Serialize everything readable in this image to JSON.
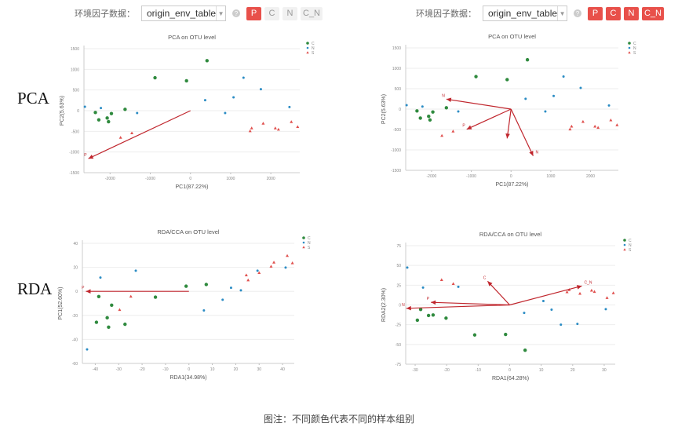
{
  "toolbars": [
    {
      "label": "环境因子数据：",
      "select_value": "origin_env_table",
      "help": "?",
      "buttons": [
        {
          "label": "P",
          "active": true
        },
        {
          "label": "C",
          "active": false
        },
        {
          "label": "N",
          "active": false
        },
        {
          "label": "C_N",
          "active": false
        }
      ]
    },
    {
      "label": "环境因子数据：",
      "select_value": "origin_env_table",
      "help": "?",
      "buttons": [
        {
          "label": "P",
          "active": true
        },
        {
          "label": "C",
          "active": true
        },
        {
          "label": "N",
          "active": true
        },
        {
          "label": "C_N",
          "active": true
        }
      ]
    }
  ],
  "row_labels": [
    "PCA",
    "RDA"
  ],
  "caption": "图注：不同颜色代表不同的样本组别",
  "colors": {
    "C": "#2f8a3e",
    "N": "#2b8cc4",
    "S": "#e0504e",
    "arrow": "#c0262d",
    "active_button": "#e8504a"
  },
  "chart_data": [
    {
      "type": "scatter",
      "title": "PCA on OTU level",
      "xlabel": "PC1(87.22%)",
      "ylabel": "PC2(5.63%)",
      "xlim": [
        -2650,
        2720
      ],
      "ylim": [
        -1500,
        1500
      ],
      "xticks": [
        -2000,
        -1000,
        0,
        1000,
        2000
      ],
      "yticks": [
        1500,
        1000,
        500,
        0,
        -500,
        -1000,
        -1500
      ],
      "legend": "top-right",
      "grid": true,
      "series": [
        {
          "name": "C",
          "marker": "circle",
          "points": [
            [
              -2366,
              -44
            ],
            [
              -2281,
              -221
            ],
            [
              -2072,
              -177
            ],
            [
              -2039,
              -266
            ],
            [
              -1967,
              -70
            ],
            [
              -1627,
              32
            ],
            [
              -882,
              797
            ],
            [
              -98,
              722
            ],
            [
              412,
              1209
            ]
          ]
        },
        {
          "name": "N",
          "marker": "dot",
          "points": [
            [
              -2627,
              95
            ],
            [
              -2229,
              63
            ],
            [
              -1327,
              -57
            ],
            [
              366,
              253
            ],
            [
              863,
              -57
            ],
            [
              1072,
              323
            ],
            [
              1320,
              797
            ],
            [
              1752,
              519
            ],
            [
              2464,
              89
            ]
          ]
        },
        {
          "name": "S",
          "marker": "triangle",
          "points": [
            [
              -1739,
              -652
            ],
            [
              -1458,
              -544
            ],
            [
              1484,
              -494
            ],
            [
              1523,
              -424
            ],
            [
              1810,
              -310
            ],
            [
              2111,
              -424
            ],
            [
              2190,
              -456
            ],
            [
              2510,
              -272
            ],
            [
              2667,
              -392
            ]
          ]
        }
      ],
      "arrows": [
        {
          "label": "P",
          "x": -2540,
          "y": -1160
        }
      ]
    },
    {
      "type": "scatter",
      "title": "PCA on OTU level",
      "xlabel": "PC1(87.22%)",
      "ylabel": "PC2(5.63%)",
      "xlim": [
        -2650,
        2700
      ],
      "ylim": [
        -1500,
        1500
      ],
      "xticks": [
        -2000,
        -1000,
        0,
        1000,
        2000
      ],
      "yticks": [
        1500,
        1000,
        500,
        0,
        -500,
        -1000,
        -1500
      ],
      "legend": "top-right",
      "grid": true,
      "series": [
        {
          "name": "C",
          "marker": "circle",
          "points": [
            [
              -2366,
              -44
            ],
            [
              -2281,
              -221
            ],
            [
              -2072,
              -177
            ],
            [
              -2039,
              -266
            ],
            [
              -1967,
              -70
            ],
            [
              -1627,
              32
            ],
            [
              -882,
              797
            ],
            [
              -98,
              722
            ],
            [
              412,
              1209
            ]
          ]
        },
        {
          "name": "N",
          "marker": "dot",
          "points": [
            [
              -2627,
              95
            ],
            [
              -2229,
              63
            ],
            [
              -1327,
              -57
            ],
            [
              366,
              253
            ],
            [
              863,
              -57
            ],
            [
              1072,
              323
            ],
            [
              1320,
              797
            ],
            [
              1752,
              519
            ],
            [
              2464,
              89
            ]
          ]
        },
        {
          "name": "S",
          "marker": "triangle",
          "points": [
            [
              -1739,
              -652
            ],
            [
              -1458,
              -544
            ],
            [
              1484,
              -494
            ],
            [
              1523,
              -424
            ],
            [
              1810,
              -310
            ],
            [
              2111,
              -424
            ],
            [
              2190,
              -456
            ],
            [
              2510,
              -272
            ],
            [
              2667,
              -392
            ]
          ]
        }
      ],
      "arrows": [
        {
          "label": "N",
          "x": -1626,
          "y": 244
        },
        {
          "label": "P",
          "x": -1115,
          "y": -494
        },
        {
          "label": "",
          "x": -98,
          "y": -718
        },
        {
          "label": "N",
          "x": 557,
          "y": -1147
        }
      ]
    },
    {
      "type": "scatter",
      "title": "RDA/CCA on OTU level",
      "xlabel": "RDA1(34.98%)",
      "ylabel": "PC1(52.60%)",
      "xlim": [
        -45.5,
        45
      ],
      "ylim": [
        -60,
        40
      ],
      "xticks": [
        -40,
        -30,
        -20,
        -10,
        0,
        10,
        20,
        30,
        40
      ],
      "yticks": [
        40,
        20,
        0,
        -20,
        -40,
        -60
      ],
      "legend": "top-right",
      "grid": true,
      "series": [
        {
          "name": "C",
          "marker": "circle",
          "points": [
            [
              -38.5,
              -4.3
            ],
            [
              -39.5,
              -25.7
            ],
            [
              -33,
              -11.5
            ],
            [
              -34.9,
              -22
            ],
            [
              -34.3,
              -29.8
            ],
            [
              -27.3,
              -27.4
            ],
            [
              -14.3,
              -4.8
            ],
            [
              -1.2,
              4.3
            ],
            [
              7.4,
              5.7
            ]
          ]
        },
        {
          "name": "N",
          "marker": "dot",
          "points": [
            [
              -43.5,
              -48.3
            ],
            [
              -37.8,
              11.5
            ],
            [
              -22.7,
              17.2
            ],
            [
              6.4,
              -15.9
            ],
            [
              14.4,
              -7
            ],
            [
              18,
              3
            ],
            [
              22.2,
              0.9
            ],
            [
              29.3,
              17.2
            ],
            [
              41.3,
              19.8
            ]
          ]
        },
        {
          "name": "S",
          "marker": "triangle",
          "points": [
            [
              -29.6,
              -15.4
            ],
            [
              -24.8,
              -4.3
            ],
            [
              24.5,
              13.5
            ],
            [
              25.3,
              9.3
            ],
            [
              30,
              15.4
            ],
            [
              35.1,
              20.7
            ],
            [
              36.3,
              24.1
            ],
            [
              42,
              29.6
            ],
            [
              44.2,
              23.5
            ]
          ]
        }
      ],
      "arrows": [
        {
          "label": "P",
          "x": -44,
          "y": 0
        }
      ]
    },
    {
      "type": "scatter",
      "title": "RDA/CCA on OTU level",
      "xlabel": "RDA1(64.28%)",
      "ylabel": "RDA2(2.30%)",
      "xlim": [
        -33,
        33.5
      ],
      "ylim": [
        -75,
        75
      ],
      "xticks": [
        -30,
        -20,
        -10,
        0,
        10,
        20,
        30
      ],
      "yticks": [
        75,
        50,
        25,
        0,
        -25,
        -50,
        -75
      ],
      "legend": "top-right",
      "grid": true,
      "series": [
        {
          "name": "C",
          "marker": "circle",
          "points": [
            [
              -28.25,
              -5.7
            ],
            [
              -29.3,
              -19.3
            ],
            [
              -25.75,
              -13.3
            ],
            [
              -24.3,
              -12.7
            ],
            [
              -20.2,
              -16.7
            ],
            [
              -11.1,
              -38
            ],
            [
              -1.3,
              -37.3
            ],
            [
              4.9,
              -57.3
            ]
          ]
        },
        {
          "name": "N",
          "marker": "dot",
          "points": [
            [
              -32.5,
              47.3
            ],
            [
              -27.5,
              22
            ],
            [
              -16.3,
              23
            ],
            [
              4.6,
              -10
            ],
            [
              10.7,
              5
            ],
            [
              13.3,
              -6
            ],
            [
              16.25,
              -25
            ],
            [
              21.5,
              -24
            ],
            [
              30.5,
              -5.3
            ]
          ]
        },
        {
          "name": "S",
          "marker": "triangle",
          "points": [
            [
              -21.6,
              31.7
            ],
            [
              -17.9,
              26.7
            ],
            [
              18.2,
              16.3
            ],
            [
              18.9,
              19
            ],
            [
              22.3,
              14.3
            ],
            [
              26,
              18.3
            ],
            [
              26.9,
              16.7
            ],
            [
              30.9,
              9
            ],
            [
              32.9,
              15
            ]
          ]
        }
      ],
      "arrows": [
        {
          "label": "C",
          "x": -7,
          "y": 30
        },
        {
          "label": "C_N",
          "x": 22.9,
          "y": 24
        },
        {
          "label": "P",
          "x": -25,
          "y": 3.3
        },
        {
          "label": "N",
          "x": -32.8,
          "y": -4.3
        }
      ]
    }
  ]
}
